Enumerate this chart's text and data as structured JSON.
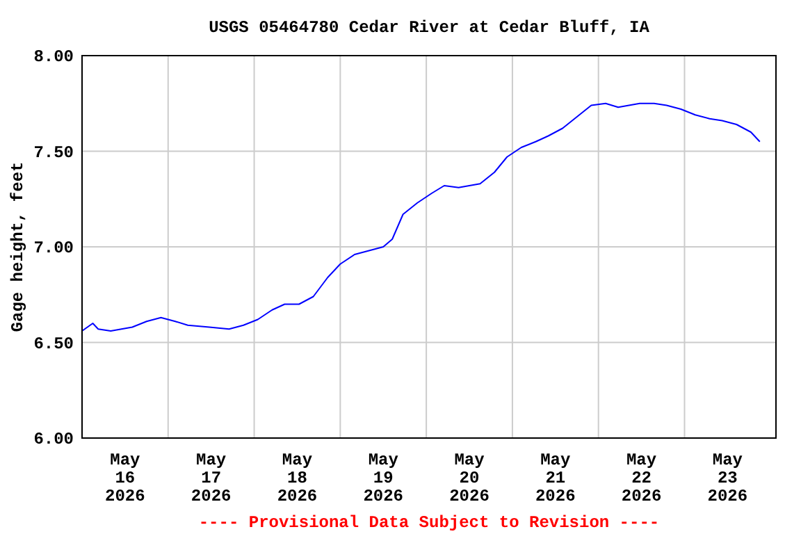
{
  "chart_data": {
    "type": "line",
    "title": "USGS 05464780 Cedar River at Cedar Bluff, IA",
    "ylabel": "Gage height, feet",
    "annotations": [
      "---- Provisional Data Subject to Revision ----"
    ],
    "x": [
      "2026-05-16T00:00",
      "2026-05-16T03:00",
      "2026-05-16T04:30",
      "2026-05-16T08:00",
      "2026-05-16T14:00",
      "2026-05-16T18:00",
      "2026-05-16T22:00",
      "2026-05-17T02:00",
      "2026-05-17T05:30",
      "2026-05-17T11:30",
      "2026-05-17T17:00",
      "2026-05-17T21:00",
      "2026-05-18T01:00",
      "2026-05-18T05:00",
      "2026-05-18T08:30",
      "2026-05-18T12:30",
      "2026-05-18T16:30",
      "2026-05-18T20:30",
      "2026-05-19T00:00",
      "2026-05-19T04:00",
      "2026-05-19T08:00",
      "2026-05-19T12:00",
      "2026-05-19T14:30",
      "2026-05-19T17:30",
      "2026-05-19T21:30",
      "2026-05-20T01:30",
      "2026-05-20T05:00",
      "2026-05-20T09:00",
      "2026-05-20T15:00",
      "2026-05-20T19:00",
      "2026-05-20T22:30",
      "2026-05-21T02:30",
      "2026-05-21T06:30",
      "2026-05-21T10:00",
      "2026-05-21T14:00",
      "2026-05-21T18:00",
      "2026-05-21T22:00",
      "2026-05-22T02:00",
      "2026-05-22T05:30",
      "2026-05-22T11:30",
      "2026-05-22T15:30",
      "2026-05-22T19:00",
      "2026-05-22T23:00",
      "2026-05-23T03:00",
      "2026-05-23T07:00",
      "2026-05-23T10:30",
      "2026-05-23T14:30",
      "2026-05-23T18:30",
      "2026-05-23T21:00"
    ],
    "series": [
      {
        "color": "#0000ff",
        "values": [
          6.56,
          6.6,
          6.57,
          6.56,
          6.58,
          6.61,
          6.63,
          6.61,
          6.59,
          6.58,
          6.57,
          6.59,
          6.62,
          6.67,
          6.7,
          6.7,
          6.74,
          6.84,
          6.91,
          6.96,
          6.98,
          7.0,
          7.04,
          7.17,
          7.23,
          7.28,
          7.32,
          7.31,
          7.33,
          7.39,
          7.47,
          7.52,
          7.55,
          7.58,
          7.62,
          7.68,
          7.74,
          7.75,
          7.73,
          7.75,
          7.75,
          7.74,
          7.72,
          7.69,
          7.67,
          7.66,
          7.64,
          7.6,
          7.55
        ]
      }
    ],
    "xlim": [
      "2026-05-16T00:00",
      "2026-05-24T01:30"
    ],
    "xticks": [
      {
        "value": "2026-05-16T12:00",
        "label": "May\n16\n2026"
      },
      {
        "value": "2026-05-17T00:00",
        "label": null
      },
      {
        "value": "2026-05-17T12:00",
        "label": "May\n17\n2026"
      },
      {
        "value": "2026-05-18T00:00",
        "label": null
      },
      {
        "value": "2026-05-18T12:00",
        "label": "May\n18\n2026"
      },
      {
        "value": "2026-05-19T00:00",
        "label": null
      },
      {
        "value": "2026-05-19T12:00",
        "label": "May\n19\n2026"
      },
      {
        "value": "2026-05-20T00:00",
        "label": null
      },
      {
        "value": "2026-05-20T12:00",
        "label": "May\n20\n2026"
      },
      {
        "value": "2026-05-21T00:00",
        "label": null
      },
      {
        "value": "2026-05-21T12:00",
        "label": "May\n21\n2026"
      },
      {
        "value": "2026-05-22T00:00",
        "label": null
      },
      {
        "value": "2026-05-22T12:00",
        "label": "May\n22\n2026"
      },
      {
        "value": "2026-05-23T00:00",
        "label": null
      },
      {
        "value": "2026-05-23T12:00",
        "label": "May\n23\n2026"
      }
    ],
    "ylim": [
      6.0,
      8.0
    ],
    "yticks": [
      {
        "value": 6.0,
        "label": "6.00"
      },
      {
        "value": 6.5,
        "label": "6.50"
      },
      {
        "value": 7.0,
        "label": "7.00"
      },
      {
        "value": 7.5,
        "label": "7.50"
      },
      {
        "value": 8.0,
        "label": "8.00"
      }
    ],
    "grid": true,
    "line_style": "solid",
    "marker": "none"
  }
}
